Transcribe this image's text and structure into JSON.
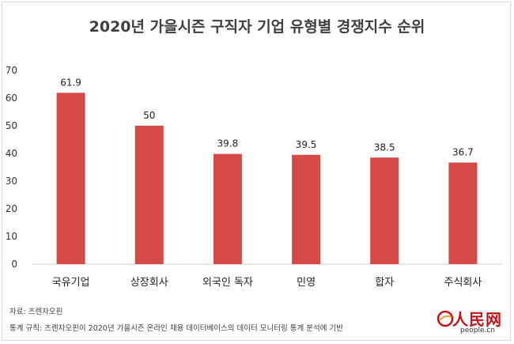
{
  "chart_data": {
    "type": "bar",
    "title": "2020년 가을시즌 구직자 기업 유형별 경쟁지수 순위",
    "categories": [
      "국유기업",
      "상장회사",
      "외국인 독자",
      "민영",
      "합자",
      "주식회사"
    ],
    "values": [
      61.9,
      50,
      39.8,
      39.5,
      38.5,
      36.7
    ],
    "data_labels": [
      "61.9",
      "50",
      "39.8",
      "39.5",
      "38.5",
      "36.7"
    ],
    "ylim": [
      0,
      70
    ],
    "yticks": [
      "0",
      "10",
      "20",
      "30",
      "40",
      "50",
      "60",
      "70"
    ],
    "grid": false,
    "legend": "none",
    "bar_color": "#d64a45"
  },
  "notes": {
    "source": "자료: 즈렌자오핀",
    "criteria": "통계 규칙: 즈렌자오핀이 2020년 가을시즌 온라인 채용 데이터베이스의 데이터 모니터링 통계 분석에 기반"
  },
  "logo": {
    "text": "人民网",
    "sub": "people.cn",
    "color": "#c0151b"
  }
}
